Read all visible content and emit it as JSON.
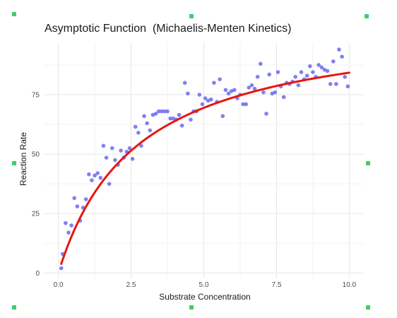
{
  "chart_data": {
    "type": "scatter",
    "title": "Asymptotic Function  (Michaelis-Menten Kinetics)",
    "xlabel": "Substrate Concentration",
    "ylabel": "Reaction Rate",
    "xlim": [
      -0.5,
      10.5
    ],
    "ylim": [
      -2,
      97
    ],
    "xticks": [
      0,
      2.5,
      5,
      7.5,
      10
    ],
    "xtick_labels": [
      "0.0",
      "2.5",
      "5.0",
      "7.5",
      "10.0"
    ],
    "yticks": [
      0,
      25,
      50,
      75
    ],
    "ytick_labels": [
      "0",
      "25",
      "50",
      "75"
    ],
    "grid": true,
    "series": [
      {
        "kind": "points",
        "color": "#6a6af0",
        "points": [
          [
            0.1,
            2
          ],
          [
            0.15,
            8
          ],
          [
            0.25,
            21
          ],
          [
            0.35,
            17
          ],
          [
            0.45,
            20
          ],
          [
            0.55,
            31.5
          ],
          [
            0.65,
            28
          ],
          [
            0.75,
            22
          ],
          [
            0.85,
            27.5
          ],
          [
            0.95,
            31
          ],
          [
            1.05,
            41.5
          ],
          [
            1.15,
            39
          ],
          [
            1.25,
            41
          ],
          [
            1.35,
            42
          ],
          [
            1.45,
            40
          ],
          [
            1.55,
            53.5
          ],
          [
            1.65,
            48.5
          ],
          [
            1.75,
            37.5
          ],
          [
            1.85,
            52.5
          ],
          [
            1.95,
            47.5
          ],
          [
            2.05,
            45.5
          ],
          [
            2.15,
            51.5
          ],
          [
            2.25,
            48.5
          ],
          [
            2.35,
            51
          ],
          [
            2.45,
            52.5
          ],
          [
            2.55,
            48
          ],
          [
            2.65,
            61.5
          ],
          [
            2.75,
            59
          ],
          [
            2.85,
            53.5
          ],
          [
            2.95,
            66
          ],
          [
            3.05,
            63
          ],
          [
            3.15,
            60
          ],
          [
            3.25,
            66.5
          ],
          [
            3.35,
            67
          ],
          [
            3.45,
            68
          ],
          [
            3.55,
            68
          ],
          [
            3.65,
            68
          ],
          [
            3.75,
            68
          ],
          [
            3.85,
            65
          ],
          [
            3.95,
            65
          ],
          [
            4.05,
            64.5
          ],
          [
            4.15,
            66.5
          ],
          [
            4.25,
            62
          ],
          [
            4.35,
            80
          ],
          [
            4.45,
            75.5
          ],
          [
            4.55,
            64.5
          ],
          [
            4.65,
            68
          ],
          [
            4.75,
            68
          ],
          [
            4.85,
            75
          ],
          [
            4.95,
            71
          ],
          [
            5.05,
            73.5
          ],
          [
            5.15,
            72.5
          ],
          [
            5.25,
            73
          ],
          [
            5.35,
            80
          ],
          [
            5.45,
            72
          ],
          [
            5.55,
            81.5
          ],
          [
            5.65,
            66
          ],
          [
            5.75,
            77
          ],
          [
            5.85,
            75.5
          ],
          [
            5.95,
            76.5
          ],
          [
            6.05,
            77
          ],
          [
            6.15,
            73.5
          ],
          [
            6.25,
            75
          ],
          [
            6.35,
            71
          ],
          [
            6.45,
            71
          ],
          [
            6.55,
            78
          ],
          [
            6.65,
            79
          ],
          [
            6.75,
            77.5
          ],
          [
            6.85,
            82.5
          ],
          [
            6.95,
            88
          ],
          [
            7.05,
            76
          ],
          [
            7.15,
            67
          ],
          [
            7.25,
            83.5
          ],
          [
            7.35,
            75.5
          ],
          [
            7.45,
            76
          ],
          [
            7.55,
            84.5
          ],
          [
            7.65,
            78.5
          ],
          [
            7.75,
            74
          ],
          [
            7.85,
            80
          ],
          [
            7.95,
            79.5
          ],
          [
            8.05,
            80.5
          ],
          [
            8.15,
            82.5
          ],
          [
            8.25,
            79
          ],
          [
            8.35,
            84.5
          ],
          [
            8.45,
            81.5
          ],
          [
            8.55,
            83
          ],
          [
            8.65,
            87
          ],
          [
            8.75,
            84.5
          ],
          [
            8.85,
            82.5
          ],
          [
            8.95,
            87.5
          ],
          [
            9.05,
            86.5
          ],
          [
            9.15,
            85.5
          ],
          [
            9.25,
            85
          ],
          [
            9.35,
            79.5
          ],
          [
            9.45,
            89
          ],
          [
            9.55,
            79.5
          ],
          [
            9.65,
            94
          ],
          [
            9.75,
            91
          ],
          [
            9.85,
            82.5
          ],
          [
            9.95,
            78.5
          ]
        ]
      },
      {
        "kind": "curve",
        "color": "#e8160f",
        "model": "Vmax*x/(Km+x)",
        "Vmax": 107,
        "Km": 2.7,
        "x_range": [
          0.1,
          10
        ]
      }
    ]
  }
}
